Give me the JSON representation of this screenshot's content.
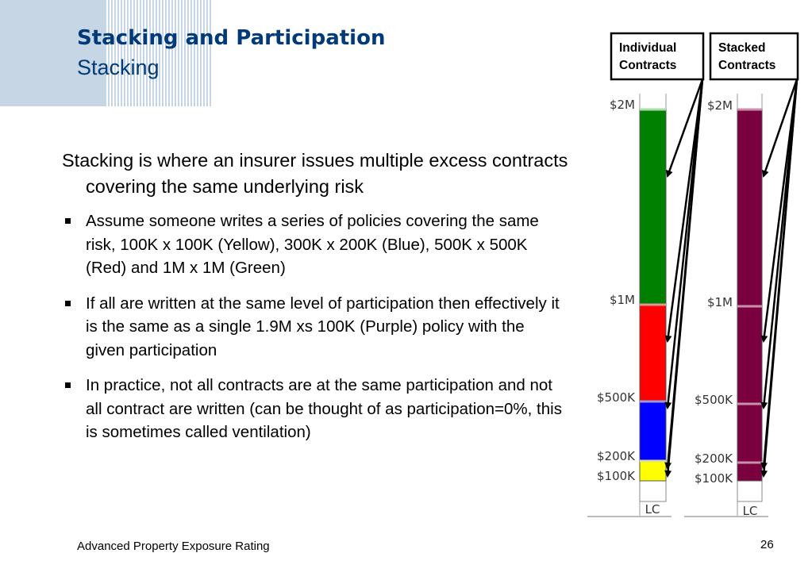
{
  "slide": {
    "title": "Stacking and Participation",
    "subtitle": "Stacking",
    "intro": "Stacking is where an insurer issues multiple excess contracts covering the same underlying risk",
    "bullets": [
      "Assume someone writes a series of policies covering the same risk, 100K x 100K (Yellow), 300K x 200K (Blue), 500K x 500K (Red) and 1M x 1M (Green)",
      "If all are written at the same level of participation then effectively it is the same as a single 1.9M xs 100K (Purple) policy with the given participation",
      "In practice, not all contracts are at the same participation and not all contract are written (can be thought of as participation=0%, this is sometimes called ventilation)"
    ],
    "footer": "Advanced Property Exposure Rating",
    "page_number": "26"
  },
  "diagram": {
    "callouts": {
      "individual": [
        "Individual",
        "Contracts"
      ],
      "stacked": [
        "Stacked",
        "Contracts"
      ]
    },
    "individual_column": {
      "labels": [
        "$2M",
        "$1M",
        "$500K",
        "$200K",
        "$100K",
        "LC"
      ],
      "layers": [
        {
          "name": "green-layer",
          "color": "#008000",
          "from": "$1M",
          "to": "$2M"
        },
        {
          "name": "red-layer",
          "color": "#ff0000",
          "from": "$500K",
          "to": "$1M"
        },
        {
          "name": "blue-layer",
          "color": "#0000ff",
          "from": "$200K",
          "to": "$500K"
        },
        {
          "name": "yellow-layer",
          "color": "#ffff00",
          "from": "$100K",
          "to": "$200K"
        }
      ]
    },
    "stacked_column": {
      "labels": [
        "$2M",
        "$1M",
        "$500K",
        "$200K",
        "$100K",
        "LC"
      ],
      "layers": [
        {
          "name": "purple-layer",
          "color": "#7a0040",
          "from": "$100K",
          "to": "$2M"
        }
      ]
    }
  }
}
